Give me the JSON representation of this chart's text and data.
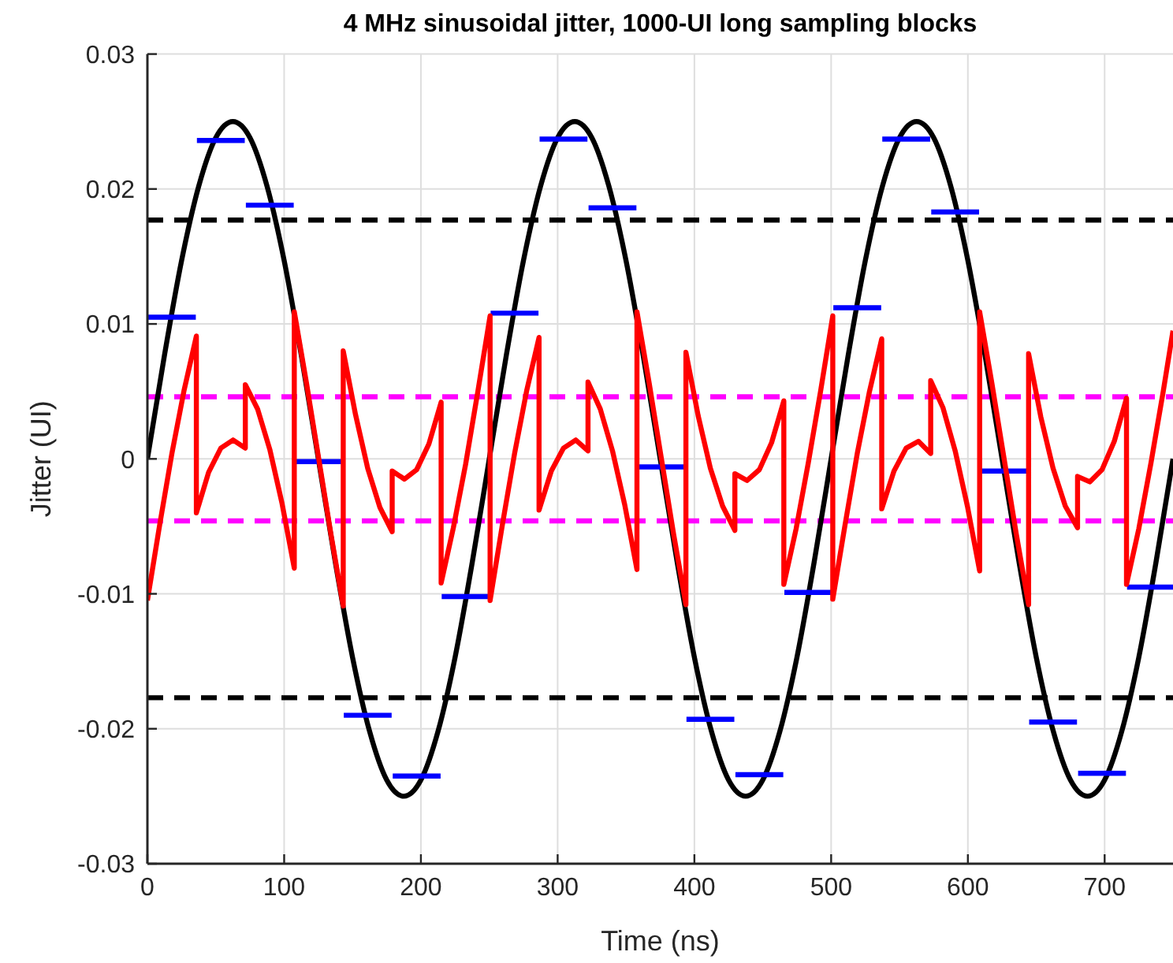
{
  "chart_data": {
    "type": "line",
    "title": "4 MHz sinusoidal jitter, 1000-UI long sampling blocks",
    "xlabel": "Time (ns)",
    "ylabel": "Jitter (UI)",
    "xlim": [
      0,
      750
    ],
    "ylim": [
      -0.03,
      0.03
    ],
    "xticks": [
      0,
      100,
      200,
      300,
      400,
      500,
      600,
      700
    ],
    "yticks": [
      -0.03,
      -0.02,
      -0.01,
      0,
      0.01,
      0.02,
      0.03
    ],
    "grid": true,
    "ref_lines": [
      {
        "axis": "y",
        "value": 0.0177,
        "color": "#000000",
        "line_style": "dashed"
      },
      {
        "axis": "y",
        "value": -0.0177,
        "color": "#000000",
        "line_style": "dashed"
      },
      {
        "axis": "y",
        "value": 0.0046,
        "color": "#ff00ff",
        "line_style": "dashed"
      },
      {
        "axis": "y",
        "value": -0.0046,
        "color": "#ff00ff",
        "line_style": "dashed"
      }
    ],
    "series": [
      {
        "color": "#000000",
        "x": [
          0,
          12.5,
          25,
          37.5,
          50,
          62.5,
          75,
          87.5,
          100,
          112.5,
          125,
          137.5,
          150,
          162.5,
          175,
          187.5,
          200,
          212.5,
          225,
          237.5,
          250,
          262.5,
          275,
          287.5,
          300,
          312.5,
          325,
          337.5,
          350,
          362.5,
          375,
          387.5,
          400,
          412.5,
          425,
          437.5,
          450,
          462.5,
          475,
          487.5,
          500,
          512.5,
          525,
          537.5,
          550,
          562.5,
          575,
          587.5,
          600,
          612.5,
          625,
          637.5,
          650,
          662.5,
          675,
          687.5,
          700,
          712.5,
          725,
          737.5,
          750
        ],
        "values": [
          0,
          0.0077,
          0.0147,
          0.0202,
          0.0238,
          0.025,
          0.0238,
          0.0202,
          0.0147,
          0.0077,
          0,
          -0.0077,
          -0.0147,
          -0.0202,
          -0.0238,
          -0.025,
          -0.0238,
          -0.0202,
          -0.0147,
          -0.0077,
          0,
          0.0077,
          0.0147,
          0.0202,
          0.0238,
          0.025,
          0.0238,
          0.0202,
          0.0147,
          0.0077,
          0,
          -0.0077,
          -0.0147,
          -0.0202,
          -0.0238,
          -0.025,
          -0.0238,
          -0.0202,
          -0.0147,
          -0.0077,
          0,
          0.0077,
          0.0147,
          0.0202,
          0.0238,
          0.025,
          0.0238,
          0.0202,
          0.0147,
          0.0077,
          0,
          -0.0077,
          -0.0147,
          -0.0202,
          -0.0238,
          -0.025,
          -0.0238,
          -0.0202,
          -0.0147,
          -0.0077,
          0
        ]
      },
      {
        "color": "#0000ff",
        "x": [
          0.4,
          35.4,
          35.8,
          36.2,
          71.2,
          71.6,
          72,
          107,
          107.4,
          107.8,
          142.8,
          143.2,
          143.6,
          178.6,
          179,
          179.4,
          214.4,
          214.8,
          215.2,
          250.2,
          250.6,
          251,
          286,
          286.4,
          286.8,
          321.8,
          322.2,
          322.6,
          357.6,
          358,
          358.4,
          393.4,
          393.8,
          394.2,
          429.2,
          429.6,
          430,
          465,
          465.4,
          465.8,
          500.8,
          501.2,
          501.6,
          536.6,
          537,
          537.4,
          572.4,
          572.8,
          573.2,
          608.2,
          608.6,
          609,
          644,
          644.4,
          644.8,
          679.8,
          680.2,
          680.6,
          715.6,
          716,
          716.4,
          750
        ],
        "values": [
          0.0105,
          0.0105,
          null,
          0.0236,
          0.0236,
          null,
          0.0188,
          0.0188,
          null,
          -0.0002,
          -0.0002,
          null,
          -0.019,
          -0.019,
          null,
          -0.0235,
          -0.0235,
          null,
          -0.0102,
          -0.0102,
          null,
          0.0108,
          0.0108,
          null,
          0.0237,
          0.0237,
          null,
          0.0186,
          0.0186,
          null,
          -0.0006,
          -0.0006,
          null,
          -0.0193,
          -0.0193,
          null,
          -0.0234,
          -0.0234,
          null,
          -0.0099,
          -0.0099,
          null,
          0.0112,
          0.0112,
          null,
          0.0237,
          0.0237,
          null,
          0.0183,
          0.0183,
          null,
          -0.0009,
          -0.0009,
          null,
          -0.0195,
          -0.0195,
          null,
          -0.0233,
          -0.0233,
          null,
          -0.0095,
          -0.0095
        ]
      },
      {
        "color": "#ff0000",
        "x": [
          0,
          8.95,
          17.9,
          26.85,
          35.8,
          35.8,
          44.75,
          53.7,
          62.65,
          71.6,
          71.6,
          80.55,
          89.5,
          98.45,
          107.4,
          107.4,
          116.35,
          125.3,
          134.25,
          143.2,
          143.2,
          152.15,
          161.1,
          170.05,
          179,
          179,
          187.95,
          196.9,
          205.85,
          214.8,
          214.8,
          223.75,
          232.7,
          241.65,
          250.6,
          250.6,
          259.55,
          268.5,
          277.45,
          286.4,
          286.4,
          295.35,
          304.3,
          313.25,
          322.2,
          322.2,
          331.15,
          340.1,
          349.05,
          358,
          358,
          366.95,
          375.9,
          384.85,
          393.8,
          393.8,
          402.75,
          411.7,
          420.65,
          429.6,
          429.6,
          438.55,
          447.5,
          456.45,
          465.4,
          465.4,
          474.35,
          483.3,
          492.25,
          501.2,
          501.2,
          510.15,
          519.1,
          528.05,
          537,
          537,
          545.95,
          554.9,
          563.85,
          572.8,
          572.8,
          581.75,
          590.7,
          599.65,
          608.6,
          608.6,
          617.55,
          626.5,
          635.45,
          644.4,
          644.4,
          653.35,
          662.3,
          671.25,
          680.2,
          680.2,
          689.15,
          698.1,
          707.05,
          716,
          716,
          724.95,
          733.9,
          742.85,
          750
        ],
        "values": [
          -0.0105,
          -0.0049,
          0.0004,
          0.0051,
          0.0091,
          -0.004,
          -0.001,
          0.0008,
          0.0014,
          0.0008,
          0.0055,
          0.0037,
          0.0007,
          -0.0033,
          -0.0081,
          0.0109,
          0.0056,
          0,
          -0.0056,
          -0.0109,
          0.008,
          0.0033,
          -0.0007,
          -0.0036,
          -0.0054,
          -0.0009,
          -0.0015,
          -0.0008,
          0.0011,
          0.0042,
          -0.0092,
          -0.0051,
          -0.0004,
          0.005,
          0.0106,
          -0.0105,
          -0.0049,
          0.0004,
          0.0051,
          0.009,
          -0.0038,
          -0.0009,
          0.0008,
          0.0014,
          0.0006,
          0.0057,
          0.0037,
          0.0006,
          -0.0034,
          -0.0082,
          0.0109,
          0.0056,
          0,
          -0.0056,
          -0.0108,
          0.0079,
          0.0032,
          -0.0007,
          -0.0035,
          -0.0053,
          -0.0011,
          -0.0016,
          -0.0008,
          0.0012,
          0.0043,
          -0.0093,
          -0.0052,
          -0.0003,
          0.005,
          0.0106,
          -0.0104,
          -0.0049,
          0.0004,
          0.005,
          0.0089,
          -0.0037,
          -0.0009,
          0.0008,
          0.0013,
          0.0004,
          0.0058,
          0.0038,
          0.0006,
          -0.0035,
          -0.0083,
          0.0109,
          0.0056,
          0,
          -0.0056,
          -0.0108,
          0.0078,
          0.0031,
          -0.0007,
          -0.0035,
          -0.0051,
          -0.0013,
          -0.0017,
          -0.0008,
          0.0013,
          0.0045,
          -0.0093,
          -0.0052,
          -0.0003,
          0.005,
          0.0095
        ]
      }
    ]
  }
}
